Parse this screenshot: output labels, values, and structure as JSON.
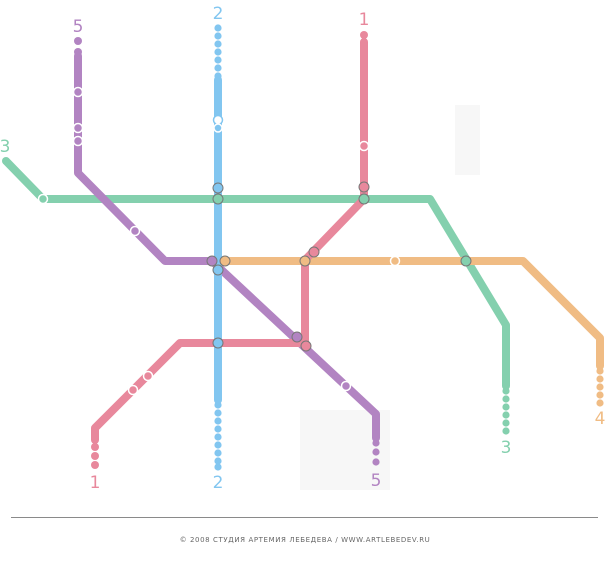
{
  "lines": [
    {
      "id": "line-1",
      "label": "1",
      "color": "#e8889c"
    },
    {
      "id": "line-2",
      "label": "2",
      "color": "#82c6f0"
    },
    {
      "id": "line-3",
      "label": "3",
      "color": "#84d0ae"
    },
    {
      "id": "line-4",
      "label": "4",
      "color": "#f0bc84"
    },
    {
      "id": "line-5",
      "label": "5",
      "color": "#b284c2"
    }
  ],
  "footer": {
    "copyright": "© 2008 СТУДИЯ АРТЕМИЯ ЛЕБЕДЕВА  /  WWW.ARTLEBEDEV.RU"
  }
}
